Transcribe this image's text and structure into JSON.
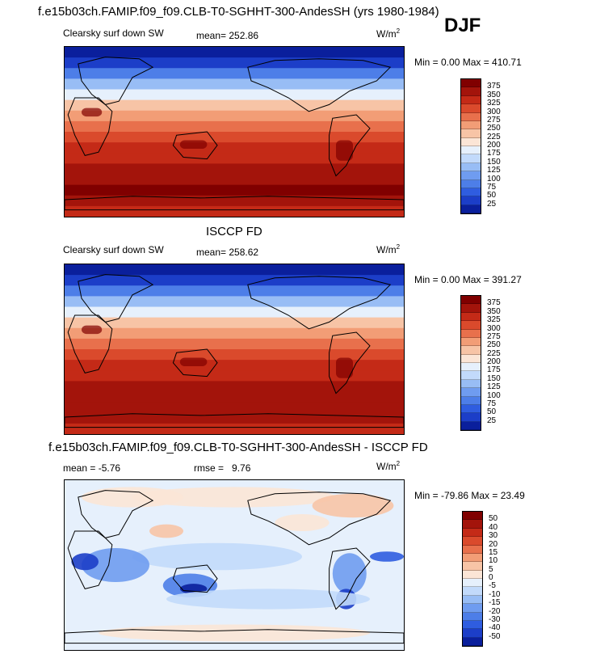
{
  "season": "DJF",
  "unit_base": "W/m",
  "unit_exp": "2",
  "chart_data": [
    {
      "type": "heatmap",
      "panel": "model",
      "title": "f.e15b03ch.FAMIP.f09_f09.CLB-T0-SGHHT-300-AndesSH (yrs 1980-1984)",
      "field_label": "Clearsky surf down SW",
      "stats_text": "mean= 252.86",
      "mean": 252.86,
      "min_max_text": "Min =    0.00 Max = 410.71",
      "min": 0.0,
      "max": 410.71,
      "colorbar_levels": [
        "375",
        "350",
        "325",
        "300",
        "275",
        "250",
        "225",
        "200",
        "175",
        "150",
        "125",
        "100",
        "75",
        "50",
        "25"
      ],
      "zonal_profile_top_to_bottom": [
        15,
        45,
        90,
        140,
        190,
        230,
        265,
        295,
        315,
        330,
        345,
        355,
        365,
        375,
        370,
        345
      ]
    },
    {
      "type": "heatmap",
      "panel": "obs",
      "title": "ISCCP FD",
      "field_label": "Clearsky surf down SW",
      "stats_text": "mean= 258.62",
      "mean": 258.62,
      "min_max_text": "Min =    0.00 Max = 391.27",
      "min": 0.0,
      "max": 391.27,
      "colorbar_levels": [
        "375",
        "350",
        "325",
        "300",
        "275",
        "250",
        "225",
        "200",
        "175",
        "150",
        "125",
        "100",
        "75",
        "50",
        "25"
      ],
      "zonal_profile_top_to_bottom": [
        10,
        40,
        85,
        140,
        195,
        235,
        268,
        298,
        318,
        332,
        345,
        352,
        360,
        368,
        365,
        340
      ]
    },
    {
      "type": "heatmap",
      "panel": "difference",
      "title": "f.e15b03ch.FAMIP.f09_f09.CLB-T0-SGHHT-300-AndesSH - ISCCP FD",
      "mean_label": "mean =",
      "mean_value": "-5.76",
      "rmse_label": "rmse =",
      "rmse_value": "9.76",
      "mean": -5.76,
      "rmse": 9.76,
      "min_max_text": "Min = -79.86 Max =  23.49",
      "min": -79.86,
      "max": 23.49,
      "colorbar_levels": [
        "50",
        "40",
        "30",
        "20",
        "15",
        "10",
        "5",
        "0",
        "-5",
        "-10",
        "-15",
        "-20",
        "-30",
        "-40",
        "-50"
      ]
    }
  ],
  "colors": {
    "pos_ramp": [
      "#0a1f9c",
      "#1c3ec8",
      "#2f5de0",
      "#4d7ee8",
      "#6f9cf0",
      "#98bdf5",
      "#c2dafb",
      "#e6f0fc",
      "#fbe5d6",
      "#f7c4a6",
      "#f29d76",
      "#e8704c",
      "#da4a2c",
      "#c42a17",
      "#a3140b",
      "#800000"
    ],
    "diff_ramp": [
      "#0a1f9c",
      "#1c3ec8",
      "#2f5de0",
      "#4d7ee8",
      "#6f9cf0",
      "#98bdf5",
      "#c2dafb",
      "#e6f0fc",
      "#fbe5d6",
      "#f7c4a6",
      "#f29d76",
      "#e8704c",
      "#da4a2c",
      "#c42a17",
      "#a3140b",
      "#800000"
    ]
  }
}
